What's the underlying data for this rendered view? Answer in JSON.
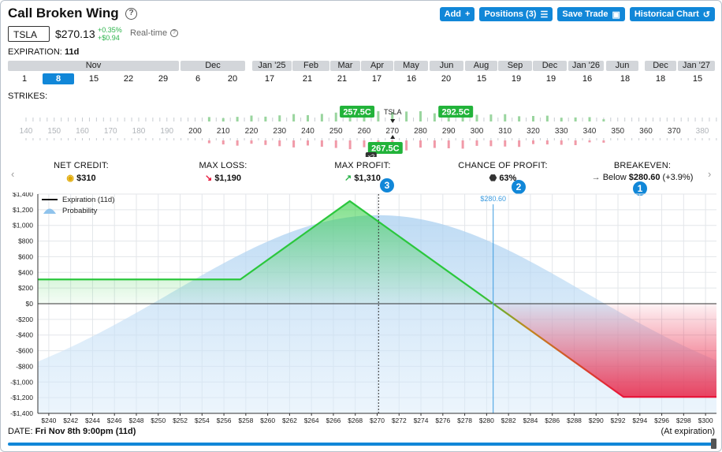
{
  "title": "Call Broken Wing",
  "toolbar": {
    "add_label": "Add",
    "positions_label": "Positions (3)",
    "save_label": "Save Trade",
    "historical_label": "Historical Chart"
  },
  "quote": {
    "symbol": "TSLA",
    "price": "$270.13",
    "change_pct": "+0.35%",
    "change_abs": "+$0.94",
    "feed": "Real-time"
  },
  "expiration": {
    "label": "EXPIRATION:",
    "value": "11d"
  },
  "expiry_months": [
    "Nov",
    "Dec",
    "Jan '25",
    "Feb",
    "Mar",
    "Apr",
    "May",
    "Jun",
    "Aug",
    "Sep",
    "Dec",
    "Jan '26",
    "Jun",
    "Dec",
    "Jan '27"
  ],
  "expiry_days": [
    "1",
    "8",
    "15",
    "22",
    "29",
    "6",
    "20",
    "17",
    "21",
    "21",
    "17",
    "16",
    "20",
    "15",
    "19",
    "19",
    "16",
    "18",
    "18",
    "15"
  ],
  "selected_day": "8",
  "strikes": {
    "label": "STRIKES:",
    "scale": [
      "140",
      "150",
      "160",
      "170",
      "180",
      "190",
      "200",
      "210",
      "220",
      "230",
      "240",
      "250",
      "260",
      "270",
      "280",
      "290",
      "300",
      "310",
      "320",
      "330",
      "340",
      "350",
      "360",
      "370",
      "380",
      "390",
      "400"
    ],
    "underlying_label": "TSLA",
    "legs": [
      {
        "label": "257.5C",
        "side": "buy"
      },
      {
        "label": "292.5C",
        "side": "buy"
      },
      {
        "label": "267.5C",
        "side": "sell",
        "qty": "×2"
      }
    ]
  },
  "stats": {
    "net_credit_label": "NET CREDIT:",
    "net_credit_value": "$310",
    "max_loss_label": "MAX LOSS:",
    "max_loss_value": "$1,190",
    "max_profit_label": "MAX PROFIT:",
    "max_profit_value": "$1,310",
    "pop_label": "CHANCE OF PROFIT:",
    "pop_value": "63%",
    "breakeven_label": "BREAKEVEN:",
    "breakeven_prefix": "Below",
    "breakeven_value": "$280.60",
    "breakeven_pct": "(+3.9%)"
  },
  "badges": [
    "1",
    "2",
    "3"
  ],
  "colors": {
    "accent": "#1187d8",
    "profit": "#2ecc40",
    "loss": "#e8163a",
    "credit_gold": "#e0a800"
  },
  "chart_data": {
    "type": "line",
    "title": "",
    "legend": [
      "Expiration (11d)",
      "Probability"
    ],
    "legend_position": "top-left",
    "xlabel": "",
    "ylabel": "",
    "xlim": [
      239,
      301
    ],
    "ylim": [
      -1400,
      1400
    ],
    "x_ticks": [
      "$240",
      "$242",
      "$244",
      "$246",
      "$248",
      "$250",
      "$252",
      "$254",
      "$256",
      "$258",
      "$260",
      "$262",
      "$264",
      "$266",
      "$268",
      "$270",
      "$272",
      "$274",
      "$276",
      "$278",
      "$280",
      "$282",
      "$284",
      "$286",
      "$288",
      "$290",
      "$292",
      "$294",
      "$296",
      "$298",
      "$300"
    ],
    "y_ticks": [
      "$1,400",
      "$1,200",
      "$1,000",
      "$800",
      "$600",
      "$400",
      "$200",
      "$0",
      "-$200",
      "-$400",
      "-$600",
      "-$800",
      "-$1,000",
      "-$1,200",
      "-$1,400"
    ],
    "series": [
      {
        "name": "Expiration (11d)",
        "points": [
          [
            239,
            310
          ],
          [
            257.5,
            310
          ],
          [
            267.5,
            1310
          ],
          [
            280.6,
            0
          ],
          [
            292.5,
            -1190
          ],
          [
            301,
            -1190
          ]
        ]
      }
    ],
    "current_price": 270.13,
    "breakeven_marker": {
      "x": 280.6,
      "label": "$280.60"
    },
    "grid": true
  },
  "footer": {
    "date_label": "DATE:",
    "date_value": "Fri Nov 8th 9:00pm (11d)",
    "at_expiration": "(At expiration)"
  }
}
